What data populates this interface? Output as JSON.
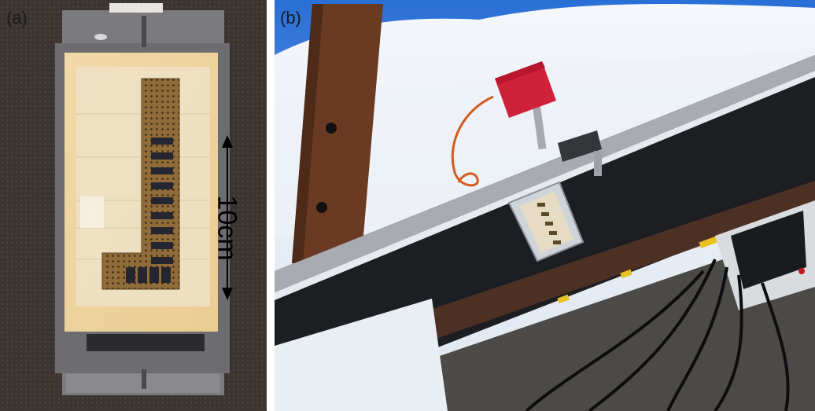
{
  "panels": {
    "a": {
      "label": "(a)",
      "scale_text": "10cm"
    },
    "b": {
      "label": "(b)"
    }
  }
}
